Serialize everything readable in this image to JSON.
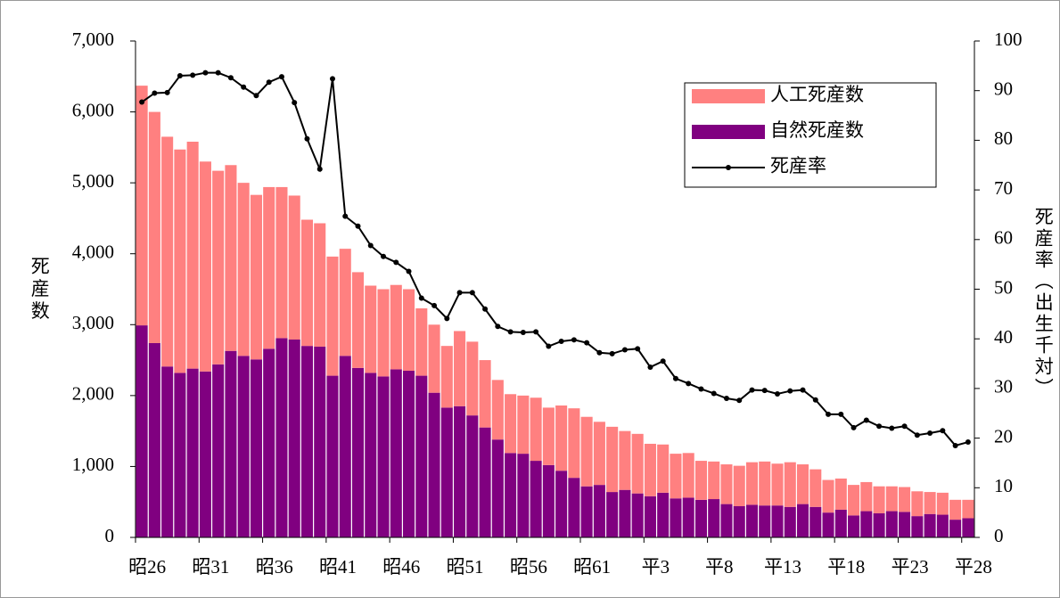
{
  "chart_data": {
    "type": "bar",
    "categories": [
      "昭26",
      null,
      null,
      null,
      null,
      "昭31",
      null,
      null,
      null,
      null,
      "昭36",
      null,
      null,
      null,
      null,
      "昭41",
      null,
      null,
      null,
      null,
      "昭46",
      null,
      null,
      null,
      null,
      "昭51",
      null,
      null,
      null,
      null,
      "昭56",
      null,
      null,
      null,
      null,
      "昭61",
      null,
      null,
      null,
      null,
      "平3",
      null,
      null,
      null,
      null,
      "平8",
      null,
      null,
      null,
      null,
      "平13",
      null,
      null,
      null,
      null,
      "平18",
      null,
      null,
      null,
      null,
      "平23",
      null,
      null,
      null,
      null,
      "平28"
    ],
    "series": [
      {
        "name": "自然死産数",
        "color": "#800080",
        "values": [
          2990,
          2740,
          2410,
          2320,
          2380,
          2340,
          2440,
          2630,
          2560,
          2510,
          2660,
          2810,
          2790,
          2700,
          2690,
          2280,
          2560,
          2390,
          2320,
          2270,
          2370,
          2350,
          2280,
          2040,
          1830,
          1850,
          1720,
          1550,
          1380,
          1190,
          1180,
          1080,
          1020,
          940,
          840,
          720,
          740,
          640,
          670,
          620,
          580,
          630,
          550,
          560,
          530,
          540,
          470,
          440,
          460,
          450,
          450,
          430,
          470,
          430,
          350,
          390,
          310,
          370,
          340,
          370,
          360,
          300,
          330,
          320,
          250,
          270
        ]
      },
      {
        "name": "人工死産数",
        "color": "#ff8080",
        "values": [
          3380,
          3260,
          3240,
          3150,
          3200,
          2960,
          2730,
          2620,
          2440,
          2320,
          2280,
          2130,
          2030,
          1780,
          1740,
          1680,
          1510,
          1350,
          1230,
          1230,
          1190,
          1150,
          950,
          960,
          870,
          1060,
          1040,
          950,
          840,
          830,
          820,
          890,
          810,
          920,
          980,
          980,
          890,
          920,
          830,
          840,
          740,
          680,
          630,
          630,
          550,
          530,
          560,
          570,
          600,
          620,
          590,
          630,
          560,
          530,
          460,
          440,
          430,
          410,
          380,
          350,
          350,
          350,
          310,
          310,
          280,
          260
        ]
      },
      {
        "name": "死産率",
        "color": "#000000",
        "type": "line",
        "axis": "y2",
        "values": [
          87.7,
          89.5,
          89.6,
          93.0,
          93.1,
          93.6,
          93.6,
          92.6,
          90.7,
          89.0,
          91.7,
          92.8,
          87.6,
          80.3,
          74.2,
          92.4,
          64.7,
          62.7,
          58.8,
          56.6,
          55.4,
          53.6,
          48.2,
          46.7,
          44.1,
          49.3,
          49.3,
          46.0,
          42.5,
          41.4,
          41.3,
          41.4,
          38.5,
          39.5,
          39.8,
          39.2,
          37.2,
          37.0,
          37.8,
          38.0,
          34.3,
          35.5,
          32.0,
          31.0,
          29.9,
          29.0,
          28.0,
          27.6,
          29.7,
          29.6,
          28.9,
          29.5,
          29.7,
          27.7,
          24.8,
          24.8,
          22.1,
          23.6,
          22.4,
          22.0,
          22.4,
          20.6,
          21.0,
          21.5,
          18.5,
          19.2
        ]
      }
    ],
    "y_label": "死産数",
    "y2_label": "死産率（出生千対）",
    "ylim": [
      0,
      7000
    ],
    "yticks": [
      0,
      {
        "value": 1000,
        "label": "1,000"
      },
      {
        "value": 2000,
        "label": "2,000"
      },
      {
        "value": 3000,
        "label": "3,000"
      },
      {
        "value": 4000,
        "label": "4,000"
      },
      {
        "value": 5000,
        "label": "5,000"
      },
      {
        "value": 6000,
        "label": "6,000"
      },
      {
        "value": 7000,
        "label": "7,000"
      }
    ],
    "y2lim": [
      0,
      100
    ],
    "y2ticks": [
      0,
      10,
      20,
      30,
      40,
      50,
      60,
      70,
      80,
      90,
      100
    ],
    "grid": false,
    "legend": "upper right"
  }
}
